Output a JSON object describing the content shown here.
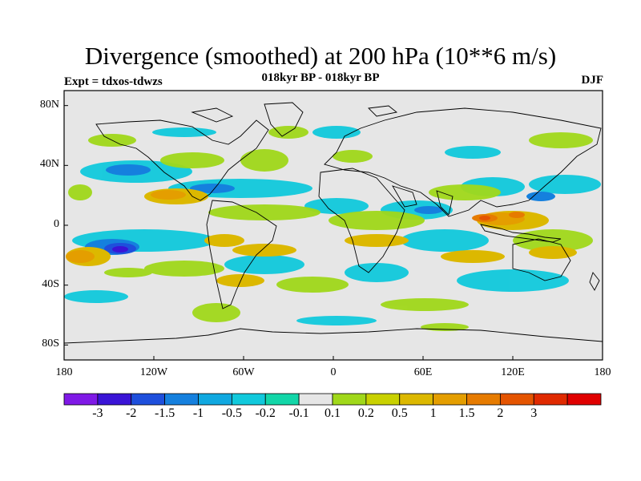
{
  "title": "Divergence (smoothed) at 200 hPa (10**6 m/s)",
  "subtitle": "018kyr BP - 018kyr BP",
  "expt_label": "Expt = tdxos-tdwzs",
  "season": "DJF",
  "map": {
    "projection": "cylindrical equidistant",
    "lon_range": [
      -180,
      180
    ],
    "lat_range": [
      -90,
      90
    ],
    "x_ticks": [
      "180",
      "120W",
      "60W",
      "0",
      "60E",
      "120E",
      "180"
    ],
    "y_ticks": [
      "80N",
      "40N",
      "0",
      "40S",
      "80S"
    ],
    "background_color": "#e6e6e6",
    "coastline_color": "#000000"
  },
  "colorbar": {
    "colors": [
      "#7f19e6",
      "#3a14d6",
      "#1e4fdc",
      "#1580de",
      "#10a8e0",
      "#11c9dc",
      "#12d6a8",
      "#e6e6e6",
      "#a0d81a",
      "#c9d100",
      "#dcb800",
      "#e49e00",
      "#e67b00",
      "#e45400",
      "#e02a00",
      "#e00000"
    ],
    "labels": [
      "-3",
      "-2",
      "-1.5",
      "-1",
      "-0.5",
      "-0.2",
      "-0.1",
      "0.1",
      "0.2",
      "0.5",
      "1",
      "1.5",
      "2",
      "3"
    ]
  }
}
